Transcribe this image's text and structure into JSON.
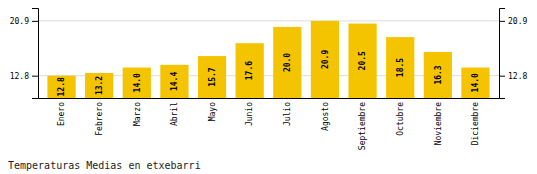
{
  "chart_data": {
    "type": "bar",
    "title": "Temperaturas Medias en etxebarri",
    "categories": [
      "Enero",
      "Febrero",
      "Marzo",
      "Abril",
      "Mayo",
      "Junio",
      "Julio",
      "Agosto",
      "Septiembre",
      "Octubre",
      "Noviembre",
      "Diciembre"
    ],
    "values": [
      12.8,
      13.2,
      14.0,
      14.4,
      15.7,
      17.6,
      20.0,
      20.9,
      20.5,
      18.5,
      16.3,
      14.0
    ],
    "value_labels": [
      "12.8",
      "13.2",
      "14.0",
      "14.4",
      "15.7",
      "17.6",
      "20.0",
      "20.9",
      "20.5",
      "18.5",
      "16.3",
      "14.0"
    ],
    "color": "#F5C400",
    "ylim": [
      9.5,
      22.8
    ],
    "yticks": [
      12.8,
      20.9
    ],
    "grid": true,
    "data_labels": true
  }
}
